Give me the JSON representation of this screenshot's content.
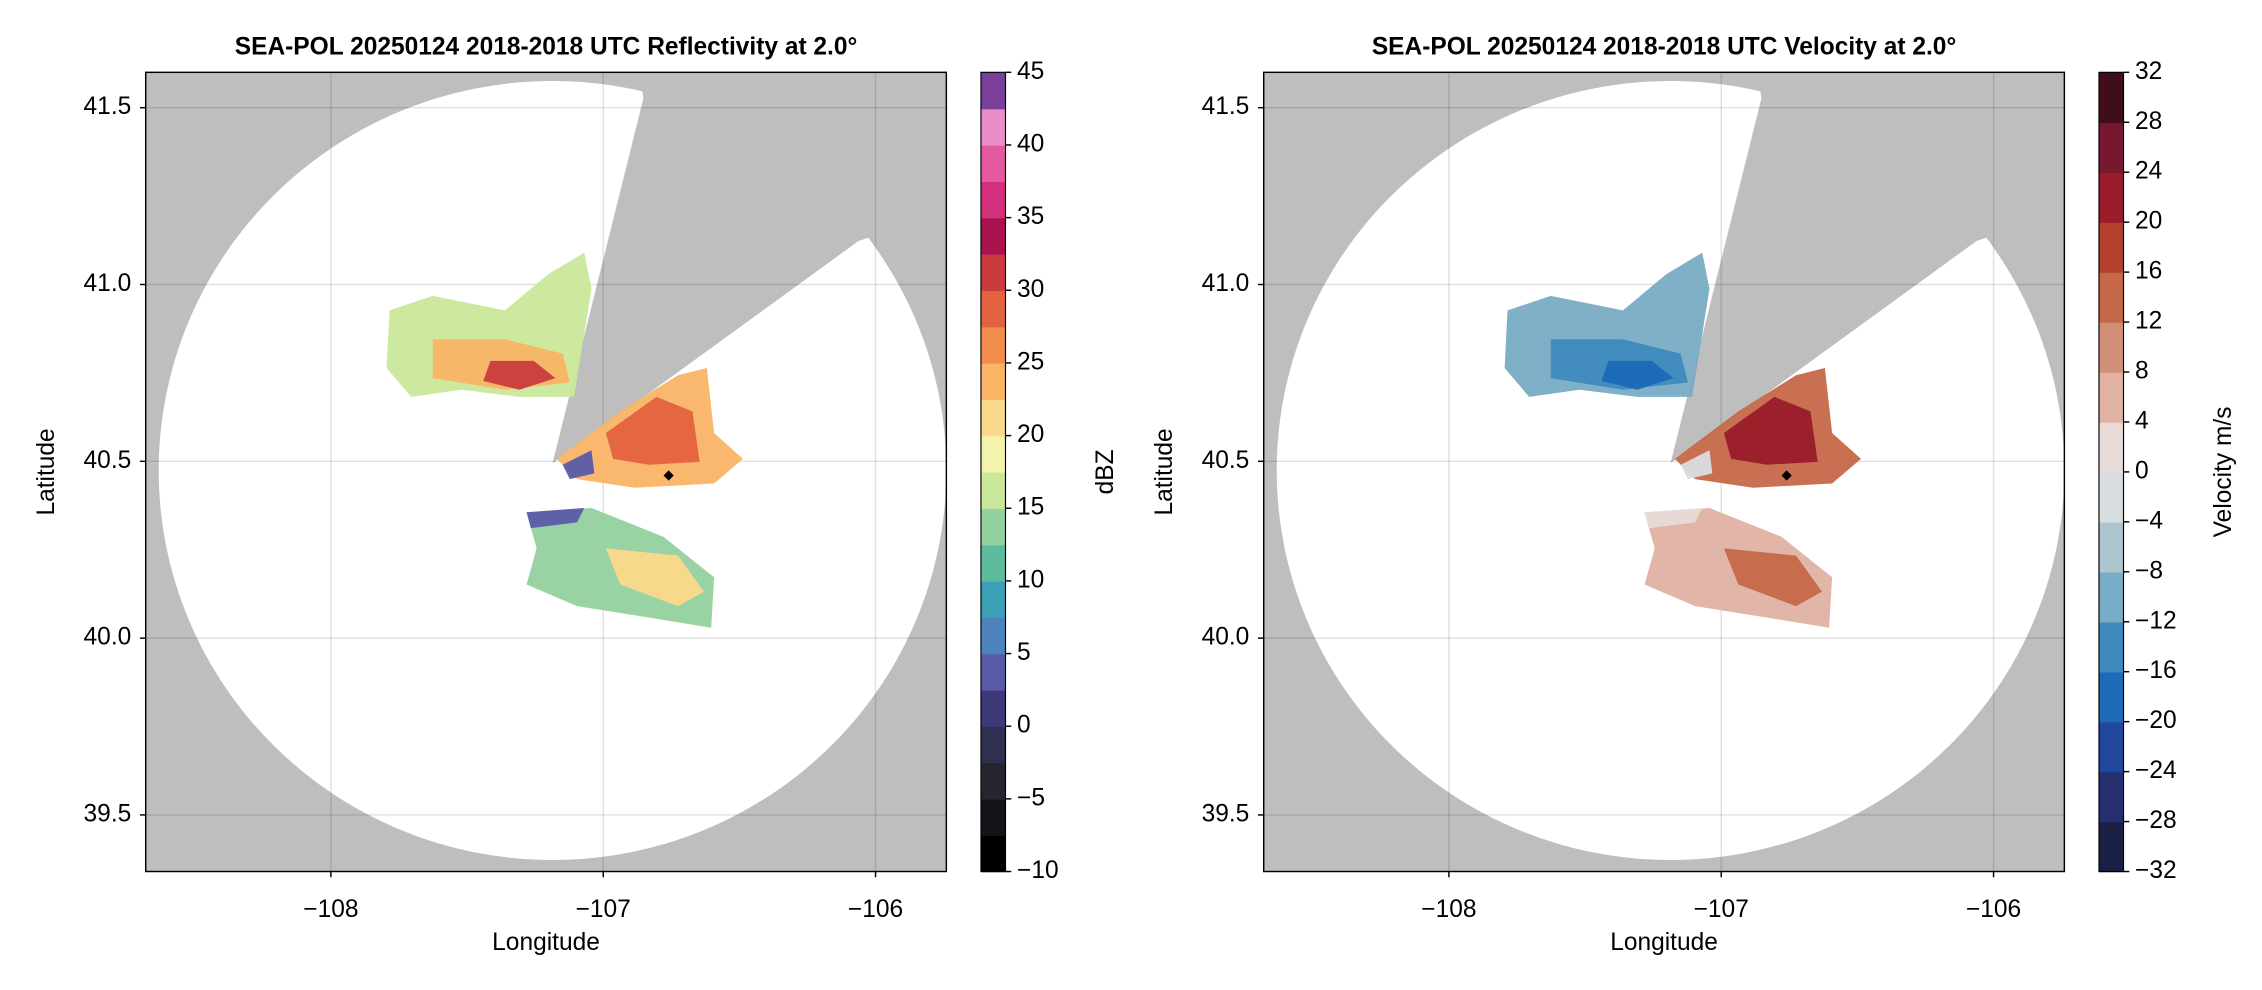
{
  "chart_data": [
    {
      "type": "map",
      "title": "SEA-POL 20250124 2018-2018 UTC Reflectivity at 2.0°",
      "xlabel": "Longitude",
      "ylabel": "Latitude",
      "xlim": [
        -108.68,
        -105.74
      ],
      "ylim": [
        39.34,
        41.6
      ],
      "xticks": [
        {
          "value": -108,
          "label": "−108"
        },
        {
          "value": -107,
          "label": "−107"
        },
        {
          "value": -106,
          "label": "−106"
        }
      ],
      "yticks": [
        39.5,
        {
          "value": 40,
          "label": "40.0"
        },
        40.5,
        {
          "value": 41,
          "label": "41.0"
        },
        41.5
      ],
      "grid": true,
      "colorbar": {
        "label": "dBZ",
        "lim": [
          -10,
          45
        ],
        "ticks": [
          {
            "value": -10,
            "label": "−10"
          },
          {
            "value": -5,
            "label": "−5"
          },
          0,
          5,
          10,
          15,
          20,
          25,
          30,
          35,
          40,
          45
        ],
        "colors": [
          "#000000",
          "#141418",
          "#25252f",
          "#2f2f4f",
          "#3e3a7a",
          "#5a5ba8",
          "#4c83bd",
          "#3ba0b5",
          "#5dbb9e",
          "#93d19f",
          "#c9e89a",
          "#f2f4ac",
          "#fbd98a",
          "#f9b466",
          "#f28d4c",
          "#e3623f",
          "#c93b3f",
          "#a8124f",
          "#d2307a",
          "#e45aa0",
          "#e88fca",
          "#7a3f98"
        ]
      }
    },
    {
      "type": "map",
      "title": "SEA-POL 20250124 2018-2018 UTC Velocity at 2.0°",
      "xlabel": "Longitude",
      "ylabel": "Latitude",
      "xlim": [
        -108.68,
        -105.74
      ],
      "ylim": [
        39.34,
        41.6
      ],
      "xticks": [
        {
          "value": -108,
          "label": "−108"
        },
        {
          "value": -107,
          "label": "−107"
        },
        {
          "value": -106,
          "label": "−106"
        }
      ],
      "yticks": [
        39.5,
        {
          "value": 40,
          "label": "40.0"
        },
        40.5,
        {
          "value": 41,
          "label": "41.0"
        },
        41.5
      ],
      "grid": true,
      "colorbar": {
        "label": "Velocity m/s",
        "lim": [
          -32,
          32
        ],
        "ticks": [
          {
            "value": -32,
            "label": "−32"
          },
          {
            "value": -28,
            "label": "−28"
          },
          {
            "value": -24,
            "label": "−24"
          },
          {
            "value": -20,
            "label": "−20"
          },
          {
            "value": -16,
            "label": "−16"
          },
          {
            "value": -12,
            "label": "−12"
          },
          {
            "value": -8,
            "label": "−8"
          },
          {
            "value": -4,
            "label": "−4"
          },
          0,
          4,
          8,
          12,
          16,
          20,
          24,
          28,
          32
        ],
        "colors": [
          "#1a1f45",
          "#262f70",
          "#22489e",
          "#1c6ab8",
          "#3f8abf",
          "#79acc5",
          "#aec5cf",
          "#d9dde0",
          "#e9dbd8",
          "#dfb2a3",
          "#d28f78",
          "#c56848",
          "#b4412d",
          "#9a1b2a",
          "#771830",
          "#3f0e18"
        ]
      }
    }
  ]
}
